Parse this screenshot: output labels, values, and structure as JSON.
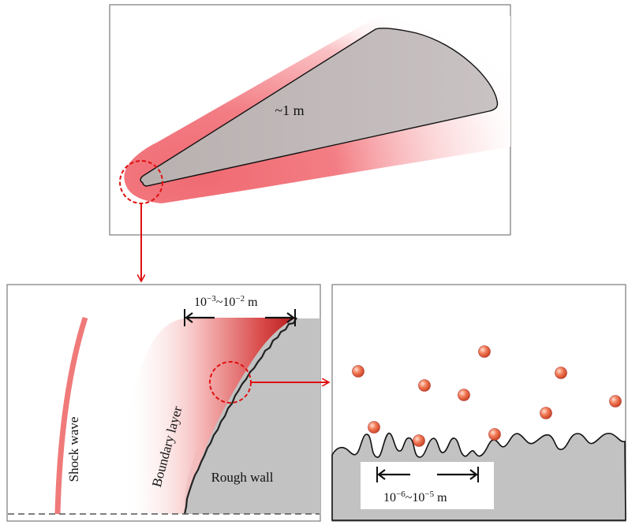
{
  "top_panel": {
    "size_label": "~1 m"
  },
  "bottom_left_panel": {
    "scale_label_base1": "10",
    "scale_label_exp1": "−3",
    "scale_label_sep": "~10",
    "scale_label_exp2": "−2",
    "scale_label_unit": " m",
    "shock_label": "Shock wave",
    "boundary_label": "Boundary layer",
    "wall_label": "Rough wall"
  },
  "bottom_right_panel": {
    "scale_label_base1": "10",
    "scale_label_exp1": "−6",
    "scale_label_sep": "~10",
    "scale_label_exp2": "−5",
    "scale_label_unit": " m"
  },
  "colors": {
    "accent_red": "#e01010",
    "body_gray": "#c4bcbc",
    "wall_gray": "#c2c2c2",
    "shock_pink": "#f07a7a",
    "particle_orange": "#ee6a4a"
  }
}
